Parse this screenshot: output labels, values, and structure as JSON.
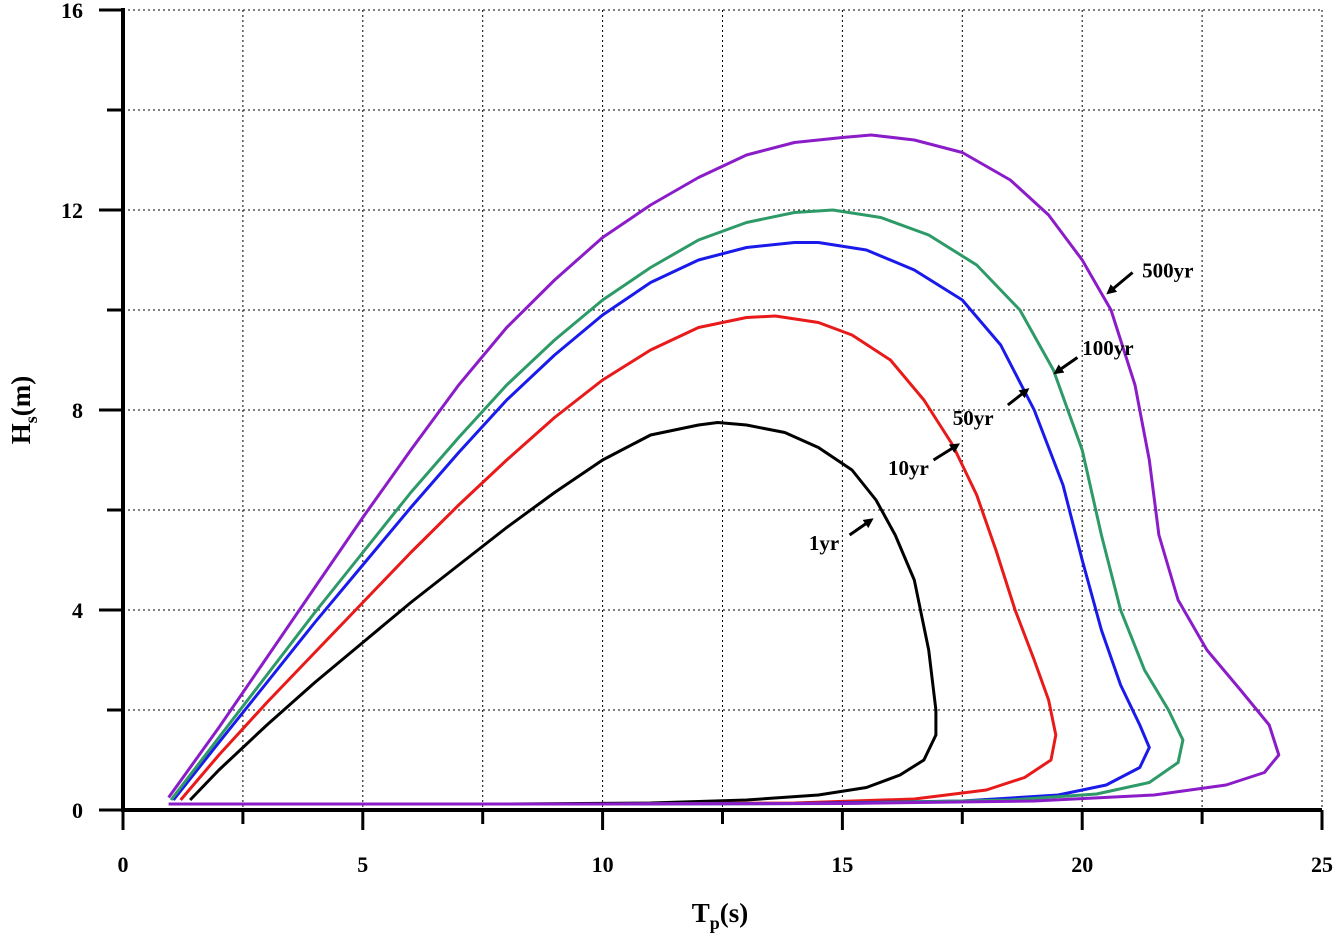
{
  "chart_data": {
    "type": "line",
    "xlabel": {
      "main": "T",
      "sub": "p",
      "tail": "(s)"
    },
    "ylabel": {
      "main": "H",
      "sub": "s",
      "tail": "(m)"
    },
    "xlim": [
      0,
      25
    ],
    "ylim": [
      0,
      16
    ],
    "x_major_ticks": [
      0,
      5,
      10,
      15,
      20,
      25
    ],
    "x_tick_labels": [
      "0",
      "5",
      "10",
      "15",
      "20",
      "25"
    ],
    "x_minor_ticks": [
      2.5,
      7.5,
      12.5,
      17.5,
      22.5
    ],
    "y_major_ticks": [
      0,
      4,
      8,
      12,
      16
    ],
    "y_tick_labels": [
      "0",
      "4",
      "8",
      "12",
      "16"
    ],
    "y_minor_ticks": [
      2,
      6,
      10,
      14
    ],
    "grid": true,
    "series": [
      {
        "name": "1yr",
        "color": "#000000",
        "points": [
          [
            1.4,
            0.2
          ],
          [
            2,
            0.8
          ],
          [
            3,
            1.7
          ],
          [
            4,
            2.55
          ],
          [
            5,
            3.35
          ],
          [
            6,
            4.15
          ],
          [
            7,
            4.9
          ],
          [
            8,
            5.65
          ],
          [
            9,
            6.35
          ],
          [
            10,
            7.0
          ],
          [
            11,
            7.5
          ],
          [
            12,
            7.7
          ],
          [
            12.4,
            7.75
          ],
          [
            13,
            7.7
          ],
          [
            13.8,
            7.55
          ],
          [
            14.5,
            7.25
          ],
          [
            15.2,
            6.8
          ],
          [
            15.7,
            6.2
          ],
          [
            16.1,
            5.5
          ],
          [
            16.5,
            4.6
          ],
          [
            16.8,
            3.2
          ],
          [
            16.95,
            2.0
          ],
          [
            16.95,
            1.5
          ],
          [
            16.7,
            1.0
          ],
          [
            16.2,
            0.7
          ],
          [
            15.5,
            0.45
          ],
          [
            14.5,
            0.3
          ],
          [
            13,
            0.2
          ],
          [
            11,
            0.14
          ],
          [
            8,
            0.12
          ],
          [
            5,
            0.12
          ],
          [
            3,
            0.12
          ],
          [
            1.4,
            0.12
          ]
        ],
        "label": {
          "text": "1yr",
          "x": 14.3,
          "y": 5.2,
          "arrow_from": [
            15.15,
            5.5
          ],
          "arrow_to": [
            15.6,
            5.8
          ]
        }
      },
      {
        "name": "10yr",
        "color": "#e81a1a",
        "points": [
          [
            1.2,
            0.2
          ],
          [
            2,
            1.1
          ],
          [
            3,
            2.15
          ],
          [
            4,
            3.15
          ],
          [
            5,
            4.15
          ],
          [
            6,
            5.15
          ],
          [
            7,
            6.1
          ],
          [
            8,
            7.0
          ],
          [
            9,
            7.85
          ],
          [
            10,
            8.6
          ],
          [
            11,
            9.2
          ],
          [
            12,
            9.65
          ],
          [
            13,
            9.85
          ],
          [
            13.6,
            9.88
          ],
          [
            14.5,
            9.75
          ],
          [
            15.2,
            9.5
          ],
          [
            16,
            9.0
          ],
          [
            16.7,
            8.2
          ],
          [
            17.3,
            7.3
          ],
          [
            17.8,
            6.3
          ],
          [
            18.2,
            5.2
          ],
          [
            18.6,
            4.0
          ],
          [
            19.0,
            3.0
          ],
          [
            19.3,
            2.2
          ],
          [
            19.45,
            1.5
          ],
          [
            19.35,
            1.0
          ],
          [
            18.8,
            0.65
          ],
          [
            18,
            0.4
          ],
          [
            16.5,
            0.22
          ],
          [
            14,
            0.14
          ],
          [
            10,
            0.12
          ],
          [
            5,
            0.12
          ],
          [
            1.2,
            0.12
          ]
        ],
        "label": {
          "text": "10yr",
          "x": 15.95,
          "y": 6.7,
          "arrow_from": [
            16.9,
            7.0
          ],
          "arrow_to": [
            17.4,
            7.3
          ]
        }
      },
      {
        "name": "50yr",
        "color": "#1a1aeb",
        "points": [
          [
            1.05,
            0.2
          ],
          [
            2,
            1.35
          ],
          [
            3,
            2.55
          ],
          [
            4,
            3.75
          ],
          [
            5,
            4.9
          ],
          [
            6,
            6.05
          ],
          [
            7,
            7.15
          ],
          [
            8,
            8.2
          ],
          [
            9,
            9.1
          ],
          [
            10,
            9.9
          ],
          [
            11,
            10.55
          ],
          [
            12,
            11.0
          ],
          [
            13,
            11.25
          ],
          [
            14,
            11.35
          ],
          [
            14.5,
            11.35
          ],
          [
            15.5,
            11.2
          ],
          [
            16.5,
            10.8
          ],
          [
            17.5,
            10.2
          ],
          [
            18.3,
            9.3
          ],
          [
            19.0,
            8.0
          ],
          [
            19.6,
            6.5
          ],
          [
            20.0,
            5.0
          ],
          [
            20.4,
            3.6
          ],
          [
            20.8,
            2.5
          ],
          [
            21.2,
            1.7
          ],
          [
            21.4,
            1.25
          ],
          [
            21.2,
            0.85
          ],
          [
            20.5,
            0.5
          ],
          [
            19.5,
            0.3
          ],
          [
            17.5,
            0.18
          ],
          [
            14,
            0.13
          ],
          [
            10,
            0.12
          ],
          [
            5,
            0.12
          ],
          [
            1.05,
            0.12
          ]
        ],
        "label": {
          "text": "50yr",
          "x": 17.3,
          "y": 7.7,
          "arrow_from": [
            18.45,
            8.1
          ],
          "arrow_to": [
            18.85,
            8.4
          ]
        }
      },
      {
        "name": "100yr",
        "color": "#2e9a68",
        "points": [
          [
            1.0,
            0.2
          ],
          [
            2,
            1.45
          ],
          [
            3,
            2.7
          ],
          [
            4,
            3.95
          ],
          [
            5,
            5.15
          ],
          [
            6,
            6.35
          ],
          [
            7,
            7.45
          ],
          [
            8,
            8.5
          ],
          [
            9,
            9.4
          ],
          [
            10,
            10.2
          ],
          [
            11,
            10.85
          ],
          [
            12,
            11.4
          ],
          [
            13,
            11.75
          ],
          [
            14,
            11.95
          ],
          [
            14.8,
            12.0
          ],
          [
            15.8,
            11.85
          ],
          [
            16.8,
            11.5
          ],
          [
            17.8,
            10.9
          ],
          [
            18.7,
            10.0
          ],
          [
            19.4,
            8.8
          ],
          [
            20.0,
            7.2
          ],
          [
            20.4,
            5.5
          ],
          [
            20.8,
            4.0
          ],
          [
            21.3,
            2.8
          ],
          [
            21.8,
            2.0
          ],
          [
            22.1,
            1.4
          ],
          [
            22.0,
            0.95
          ],
          [
            21.4,
            0.55
          ],
          [
            20.3,
            0.32
          ],
          [
            18.5,
            0.2
          ],
          [
            15,
            0.13
          ],
          [
            10,
            0.12
          ],
          [
            5,
            0.12
          ],
          [
            1.0,
            0.12
          ]
        ],
        "label": {
          "text": "100yr",
          "x": 20.0,
          "y": 9.1,
          "arrow_from": [
            19.9,
            9.05
          ],
          "arrow_to": [
            19.45,
            8.75
          ]
        }
      },
      {
        "name": "500yr",
        "color": "#8b1dc9",
        "points": [
          [
            0.95,
            0.25
          ],
          [
            2,
            1.65
          ],
          [
            3,
            3.05
          ],
          [
            4,
            4.45
          ],
          [
            5,
            5.85
          ],
          [
            6,
            7.2
          ],
          [
            7,
            8.5
          ],
          [
            8,
            9.65
          ],
          [
            9,
            10.6
          ],
          [
            10,
            11.45
          ],
          [
            11,
            12.1
          ],
          [
            12,
            12.65
          ],
          [
            13,
            13.1
          ],
          [
            14,
            13.35
          ],
          [
            15,
            13.45
          ],
          [
            15.6,
            13.5
          ],
          [
            16.5,
            13.4
          ],
          [
            17.5,
            13.15
          ],
          [
            18.5,
            12.6
          ],
          [
            19.3,
            11.9
          ],
          [
            20.0,
            11.0
          ],
          [
            20.6,
            10.0
          ],
          [
            21.1,
            8.5
          ],
          [
            21.4,
            7.0
          ],
          [
            21.6,
            5.5
          ],
          [
            22.0,
            4.2
          ],
          [
            22.6,
            3.2
          ],
          [
            23.3,
            2.4
          ],
          [
            23.9,
            1.7
          ],
          [
            24.1,
            1.1
          ],
          [
            23.8,
            0.75
          ],
          [
            23,
            0.5
          ],
          [
            21.5,
            0.3
          ],
          [
            19,
            0.18
          ],
          [
            15,
            0.13
          ],
          [
            10,
            0.12
          ],
          [
            5,
            0.12
          ],
          [
            0.95,
            0.12
          ]
        ],
        "label": {
          "text": "500yr",
          "x": 21.25,
          "y": 10.65,
          "arrow_from": [
            21.05,
            10.75
          ],
          "arrow_to": [
            20.55,
            10.35
          ]
        }
      }
    ]
  }
}
